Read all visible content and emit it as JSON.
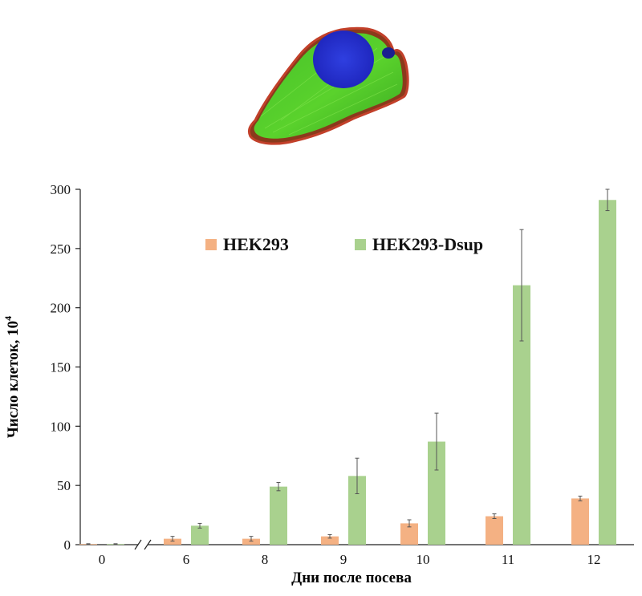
{
  "chart_data": {
    "type": "bar",
    "xlabel": "Дни после посева",
    "ylabel": "Число клеток, 10",
    "ylabel_superscript": "4",
    "categories": [
      "0",
      "6",
      "8",
      "9",
      "10",
      "11",
      "12"
    ],
    "ylim": [
      0,
      300
    ],
    "yticks": [
      "0",
      "50",
      "100",
      "150",
      "200",
      "250",
      "300"
    ],
    "axis_break_after": "0",
    "legend_position": "top-center",
    "grid": false,
    "series": [
      {
        "name": "HEK293",
        "color": "#f4b183",
        "values": [
          0.5,
          5,
          5,
          7,
          18,
          24,
          39
        ],
        "errors": [
          0.3,
          2,
          2,
          1.5,
          3,
          2,
          2
        ]
      },
      {
        "name": "HEK293-Dsup",
        "color": "#a9d18e",
        "values": [
          0.5,
          16,
          49,
          58,
          87,
          219,
          291
        ],
        "errors": [
          0.3,
          2,
          3.5,
          15,
          24,
          47,
          9
        ]
      }
    ],
    "inset_image": "fluorescence-micrograph-of-cell"
  }
}
